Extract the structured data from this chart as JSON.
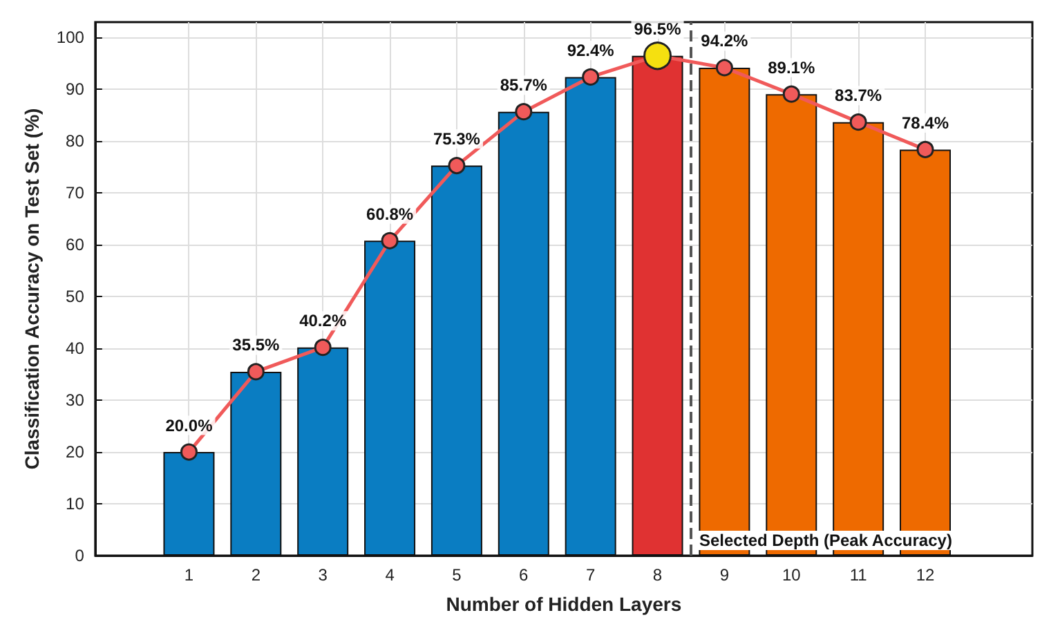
{
  "chart_data": {
    "type": "bar",
    "xlabel": "Number of Hidden Layers",
    "ylabel": "Classification Accuracy on Test Set (%)",
    "x": [
      1,
      2,
      3,
      4,
      5,
      6,
      7,
      8,
      9,
      10,
      11,
      12
    ],
    "xlim": [
      -0.4,
      13.6
    ],
    "xticks": [
      1,
      2,
      3,
      4,
      5,
      6,
      7,
      8,
      9,
      10,
      11,
      12
    ],
    "ylim": [
      0,
      103
    ],
    "yticks": [
      0,
      10,
      20,
      30,
      40,
      50,
      60,
      70,
      80,
      90,
      100
    ],
    "grid": true,
    "series": [
      {
        "values": [
          20.0,
          35.5,
          40.2,
          60.8,
          75.3,
          85.7,
          92.4,
          96.5,
          94.2,
          89.1,
          83.7,
          78.4
        ],
        "colors": [
          "#0a7dc2",
          "#0a7dc2",
          "#0a7dc2",
          "#0a7dc2",
          "#0a7dc2",
          "#0a7dc2",
          "#0a7dc2",
          "#e03232",
          "#ee6a00",
          "#ee6a00",
          "#ee6a00",
          "#ee6a00"
        ]
      },
      {
        "type": "line",
        "color": "#f05a5a",
        "marker": "circle",
        "line_style": "solid",
        "values": [
          20.0,
          35.5,
          40.2,
          60.8,
          75.3,
          85.7,
          92.4,
          96.5,
          94.2,
          89.1,
          83.7,
          78.4
        ],
        "value_labels": [
          "20.0%",
          "35.5%",
          "40.2%",
          "60.8%",
          "75.3%",
          "85.7%",
          "92.4%",
          "96.5%",
          "94.2%",
          "89.1%",
          "83.7%",
          "78.4%"
        ]
      },
      {
        "type": "scatter",
        "color": "#f5e010",
        "marker": "circle",
        "x": [
          8
        ],
        "values": [
          96.5
        ]
      }
    ],
    "ref_lines": [
      {
        "axis": "x",
        "value": 8.5,
        "label": "Selected Depth (Peak Accuracy)",
        "color": "#555555",
        "line_style": "dashed"
      }
    ]
  }
}
